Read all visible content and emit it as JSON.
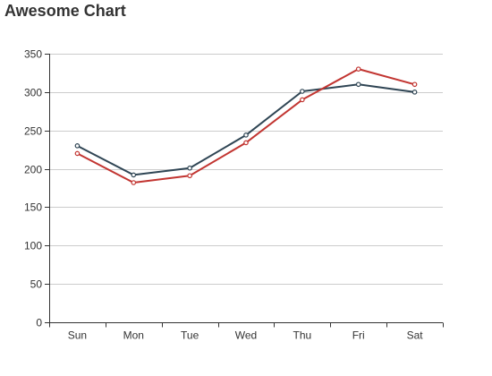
{
  "title": "Awesome Chart",
  "colors": {
    "series_dark": "#2f4554",
    "series_red": "#c23531",
    "grid": "#cccccc",
    "axis": "#333333"
  },
  "chart_data": {
    "type": "line",
    "title": "Awesome Chart",
    "xlabel": "",
    "ylabel": "",
    "categories": [
      "Sun",
      "Mon",
      "Tue",
      "Wed",
      "Thu",
      "Fri",
      "Sat"
    ],
    "ylim": [
      0,
      350
    ],
    "yticks": [
      0,
      50,
      100,
      150,
      200,
      250,
      300,
      350
    ],
    "grid": true,
    "legend": "none",
    "series": [
      {
        "color": "#2f4554",
        "values": [
          230,
          192,
          201,
          244,
          301,
          310,
          300
        ]
      },
      {
        "color": "#c23531",
        "values": [
          220,
          182,
          191,
          234,
          290,
          330,
          310
        ]
      }
    ]
  }
}
